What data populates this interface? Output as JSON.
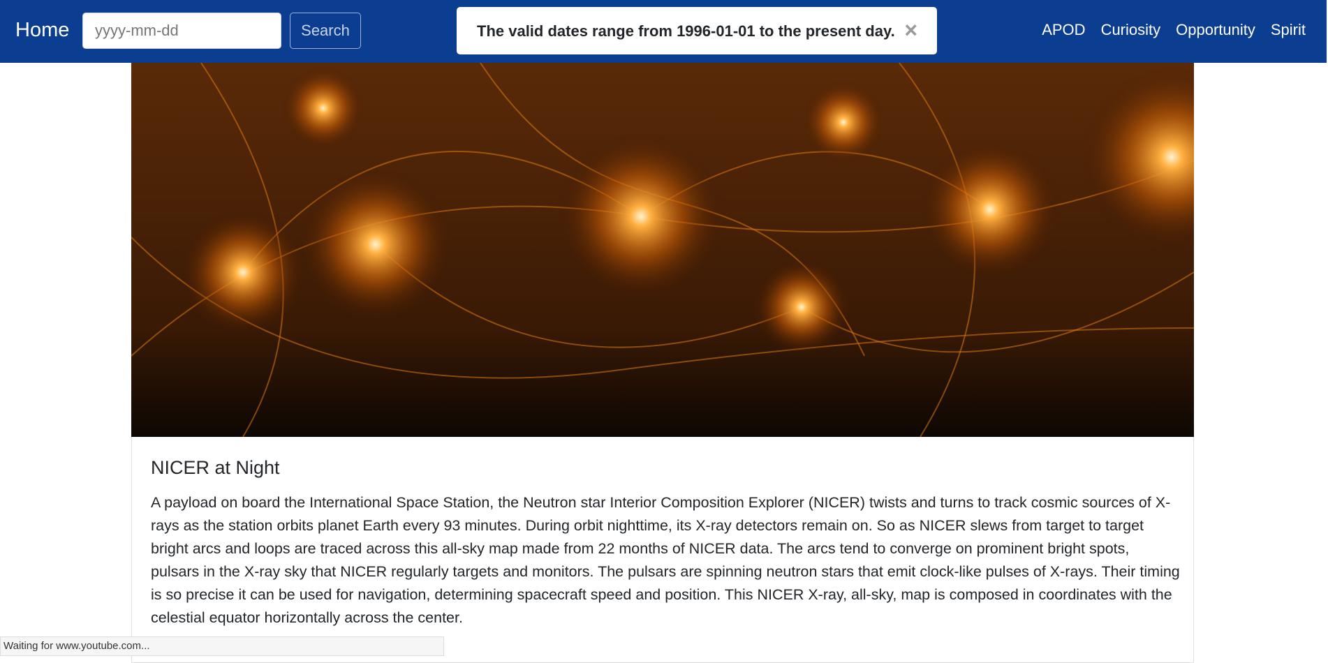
{
  "navbar": {
    "brand": "Home",
    "date_placeholder": "yyyy-mm-dd",
    "search_button": "Search",
    "links": [
      "APOD",
      "Curiosity",
      "Opportunity",
      "Spirit"
    ]
  },
  "alert": {
    "message": "The valid dates range from 1996-01-01 to the present day.",
    "close": "×"
  },
  "article": {
    "title": "NICER at Night",
    "explanation": "A payload on board the International Space Station, the Neutron star Interior Composition Explorer (NICER) twists and turns to track cosmic sources of X-rays as the station orbits planet Earth every 93 minutes. During orbit nighttime, its X-ray detectors remain on. So as NICER slews from target to target bright arcs and loops are traced across this all-sky map made from 22 months of NICER data. The arcs tend to converge on prominent bright spots, pulsars in the X-ray sky that NICER regularly targets and monitors. The pulsars are spinning neutron stars that emit clock-like pulses of X-rays. Their timing is so precise it can be used for navigation, determining spacecraft speed and position. This NICER X-ray, all-sky, map is composed in coordinates with the celestial equator horizontally across the center."
  },
  "status_bar": "Waiting for www.youtube.com..."
}
